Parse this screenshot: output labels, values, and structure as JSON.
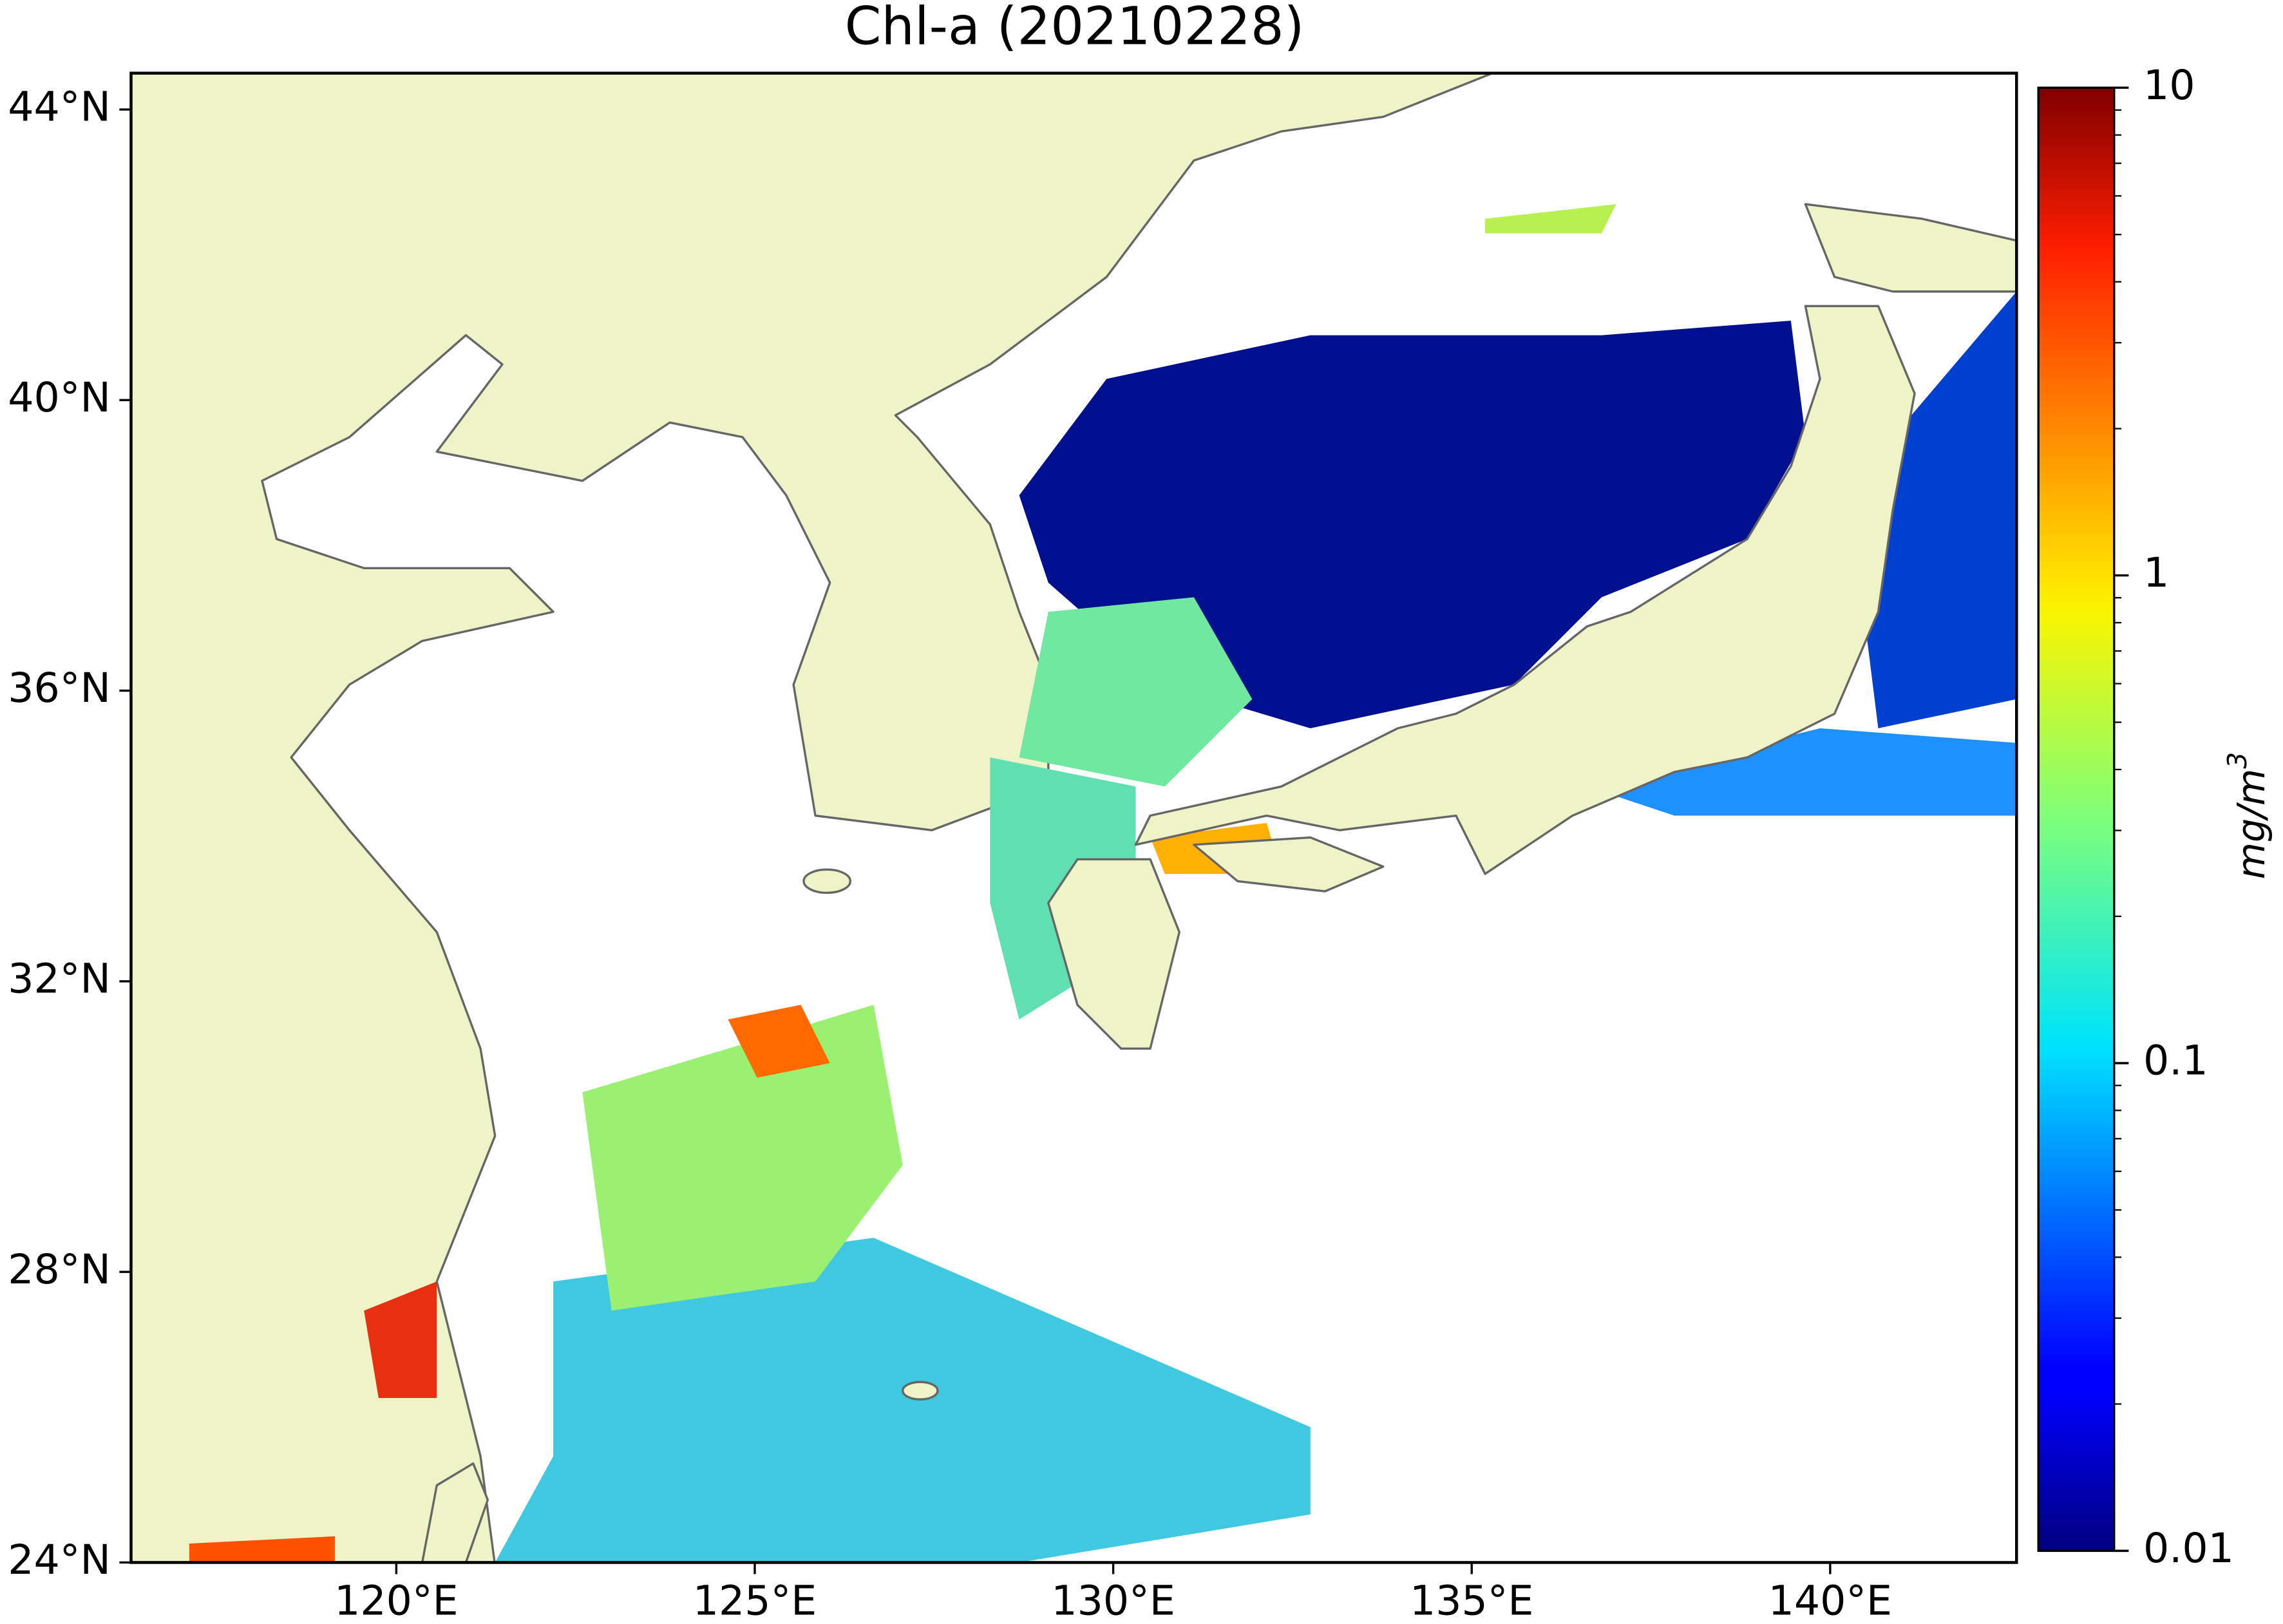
{
  "chart_data": {
    "type": "map",
    "title": "Chl-a (20210228)",
    "xlim": [
      116.3,
      142.6
    ],
    "ylim": [
      24,
      44.5
    ],
    "xticks": [
      {
        "value": 120,
        "label": "120°E"
      },
      {
        "value": 125,
        "label": "125°E"
      },
      {
        "value": 130,
        "label": "130°E"
      },
      {
        "value": 135,
        "label": "135°E"
      },
      {
        "value": 140,
        "label": "140°E"
      }
    ],
    "yticks": [
      {
        "value": 24,
        "label": "24°N"
      },
      {
        "value": 28,
        "label": "28°N"
      },
      {
        "value": 32,
        "label": "32°N"
      },
      {
        "value": 36,
        "label": "36°N"
      },
      {
        "value": 40,
        "label": "40°N"
      },
      {
        "value": 44,
        "label": "44°N"
      }
    ],
    "colorbar": {
      "label": "mg/m",
      "label_superscript": "3",
      "log_scale": true,
      "colormap": "jet",
      "lim": [
        0.01,
        10
      ],
      "ticks": [
        0.01,
        0.1,
        1,
        10
      ],
      "minor_ticks": [
        0.02,
        0.03,
        0.04,
        0.05,
        0.06,
        0.07,
        0.08,
        0.09,
        0.2,
        0.3,
        0.4,
        0.5,
        0.6,
        0.7,
        0.8,
        0.9,
        2,
        3,
        4,
        5,
        6,
        7,
        8,
        9
      ]
    }
  }
}
